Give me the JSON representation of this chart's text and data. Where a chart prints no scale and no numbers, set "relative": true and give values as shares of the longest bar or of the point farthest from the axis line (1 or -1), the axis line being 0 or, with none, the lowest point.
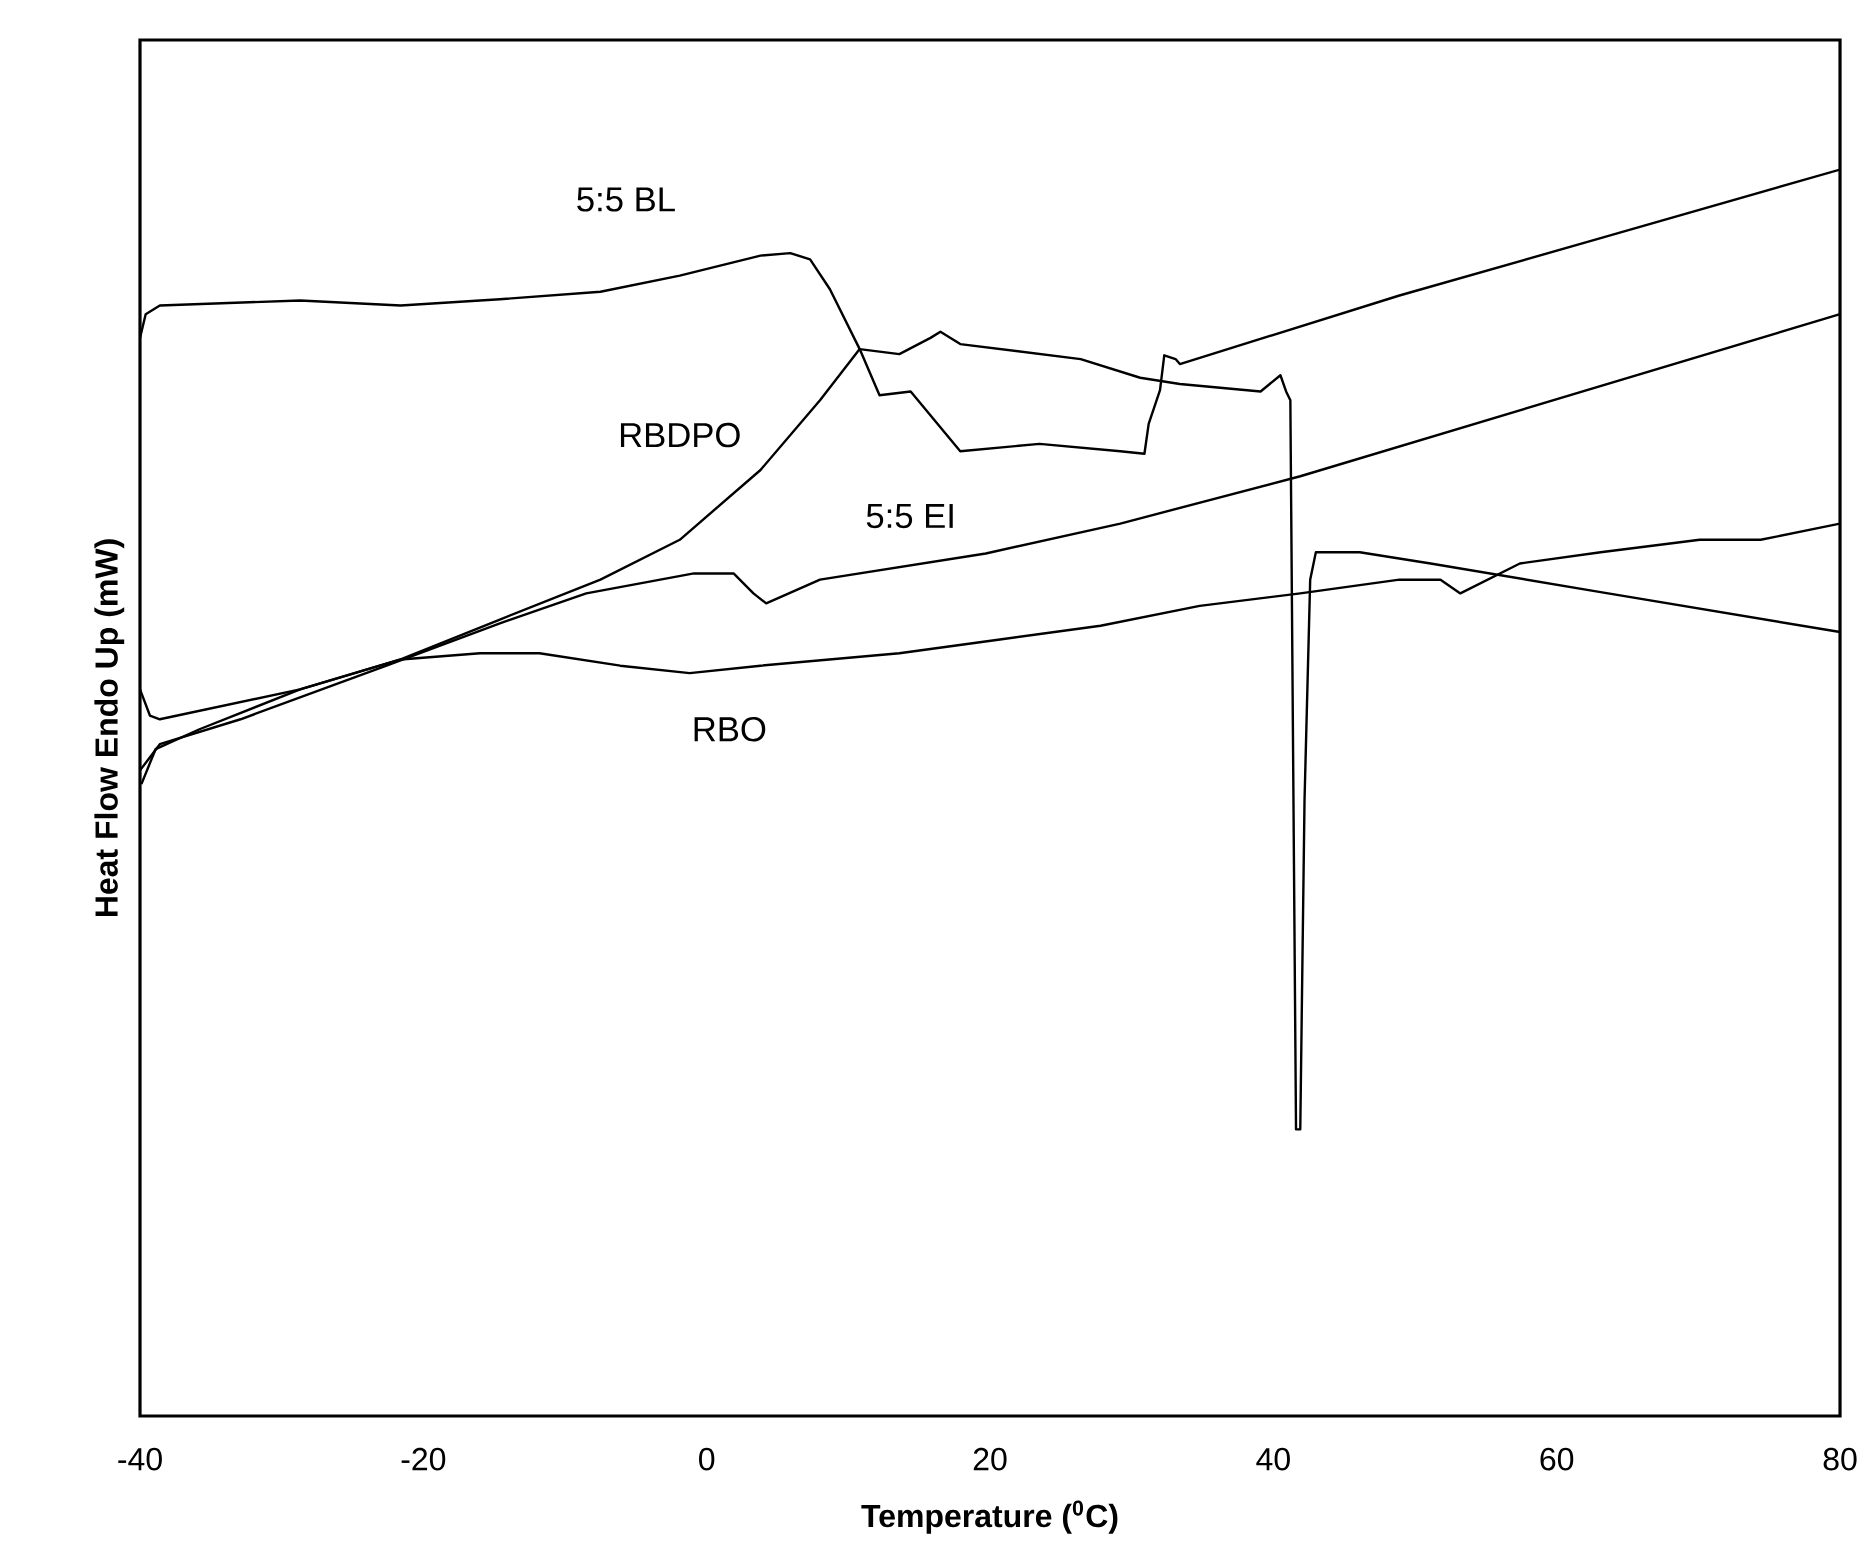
{
  "chart_data": {
    "type": "line",
    "relative": true,
    "xlabel": "Temperature ($^{0}$C)",
    "ylabel": "Heat Flow Endo Up (mW)",
    "xlim": [
      -40,
      80
    ],
    "xticks": [
      -40,
      -20,
      0,
      20,
      40,
      60,
      80
    ],
    "grid": false,
    "legend": false,
    "marker": "none",
    "line_style": "solid",
    "series": [
      {
        "name": "5:5 BL",
        "color": "#000000",
        "x": [
          -40,
          -39.6,
          -38.6,
          -28.7,
          -21.6,
          -14.6,
          -7.5,
          -1.9,
          3.8,
          5.9,
          7.3,
          8.7,
          10.8,
          12.2,
          14.4,
          17.9,
          23.5,
          29.2,
          30.9,
          31.2,
          32.0,
          32.3,
          33.1,
          33.4,
          48.9,
          63.1,
          80
        ],
        "values": [
          0.865,
          0.884,
          0.891,
          0.895,
          0.891,
          0.896,
          0.902,
          0.915,
          0.931,
          0.933,
          0.928,
          0.904,
          0.856,
          0.819,
          0.822,
          0.774,
          0.78,
          0.774,
          0.772,
          0.796,
          0.823,
          0.851,
          0.848,
          0.844,
          0.899,
          0.945,
          1.0
        ]
      },
      {
        "name": "RBDPO",
        "color": "#000000",
        "x": [
          -40,
          -39.3,
          -38.6,
          -28.7,
          -21.6,
          -14.6,
          -7.5,
          -1.9,
          3.8,
          8.0,
          10.8,
          13.6,
          15.8,
          16.5,
          17.9,
          26.4,
          30.6,
          33.4,
          39.1,
          40.5,
          40.9,
          41.2,
          41.6,
          41.9,
          42.2,
          42.6,
          43.0,
          46.1,
          51.1,
          63.1,
          80
        ],
        "values": [
          0.583,
          0.562,
          0.559,
          0.583,
          0.607,
          0.639,
          0.671,
          0.703,
          0.759,
          0.815,
          0.856,
          0.852,
          0.865,
          0.87,
          0.86,
          0.848,
          0.833,
          0.828,
          0.822,
          0.835,
          0.822,
          0.815,
          0.23,
          0.23,
          0.494,
          0.671,
          0.693,
          0.693,
          0.684,
          0.661,
          0.629
        ]
      },
      {
        "name": "5:5 EI",
        "color": "#000000",
        "x": [
          -40,
          -38.6,
          -32.9,
          -22.6,
          -14.6,
          -8.5,
          -0.9,
          1.9,
          3.3,
          4.2,
          8.0,
          19.7,
          29.2,
          41.9,
          80
        ],
        "values": [
          0.518,
          0.539,
          0.559,
          0.602,
          0.636,
          0.66,
          0.676,
          0.676,
          0.66,
          0.652,
          0.671,
          0.692,
          0.716,
          0.754,
          0.884
        ]
      },
      {
        "name": "RBO",
        "color": "#000000",
        "x": [
          -39.9,
          -38.9,
          -35.8,
          -28.7,
          -21.6,
          -16.0,
          -11.8,
          -6.1,
          -1.2,
          3.8,
          13.6,
          20.7,
          27.8,
          34.8,
          41.9,
          48.9,
          51.8,
          53.2,
          57.4,
          63.1,
          70.1,
          74.4,
          80
        ],
        "values": [
          0.507,
          0.535,
          0.551,
          0.583,
          0.607,
          0.612,
          0.612,
          0.602,
          0.596,
          0.602,
          0.612,
          0.623,
          0.634,
          0.65,
          0.66,
          0.671,
          0.671,
          0.66,
          0.684,
          0.693,
          0.703,
          0.703,
          0.716
        ]
      }
    ]
  }
}
